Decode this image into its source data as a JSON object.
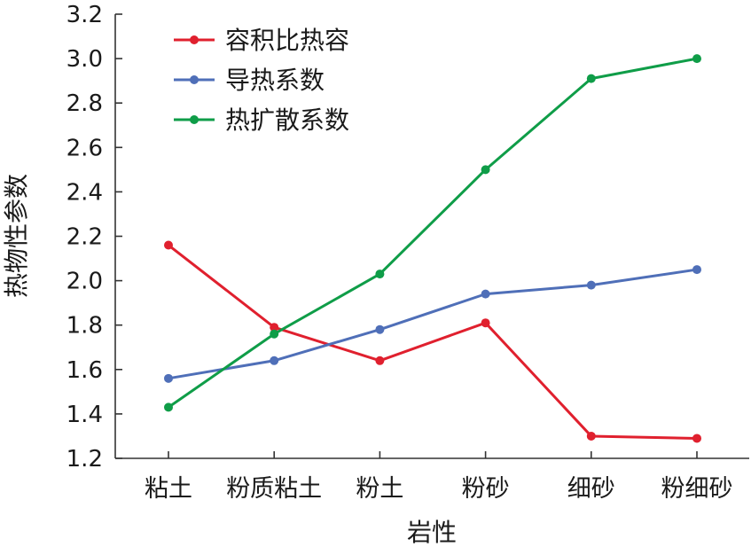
{
  "chart_data": {
    "type": "line",
    "xlabel": "岩性",
    "ylabel": "热物性参数",
    "categories": [
      "粘土",
      "粉质粘土",
      "粉土",
      "粉砂",
      "细砂",
      "粉细砂"
    ],
    "ylim": [
      1.2,
      3.2
    ],
    "yticks": [
      "1.2",
      "1.4",
      "1.6",
      "1.8",
      "2.0",
      "2.2",
      "2.4",
      "2.6",
      "2.8",
      "3.0",
      "3.2"
    ],
    "legend_position": "top-left",
    "grid": false,
    "series": [
      {
        "name": "容积比热容",
        "color": "#e0202e",
        "values": [
          2.16,
          1.79,
          1.64,
          1.81,
          1.3,
          1.29
        ]
      },
      {
        "name": "导热系数",
        "color": "#4f6fb8",
        "values": [
          1.56,
          1.64,
          1.78,
          1.94,
          1.98,
          2.05
        ]
      },
      {
        "name": "热扩散系数",
        "color": "#0f9d48",
        "values": [
          1.43,
          1.76,
          2.03,
          2.5,
          2.91,
          3.0
        ]
      }
    ]
  }
}
